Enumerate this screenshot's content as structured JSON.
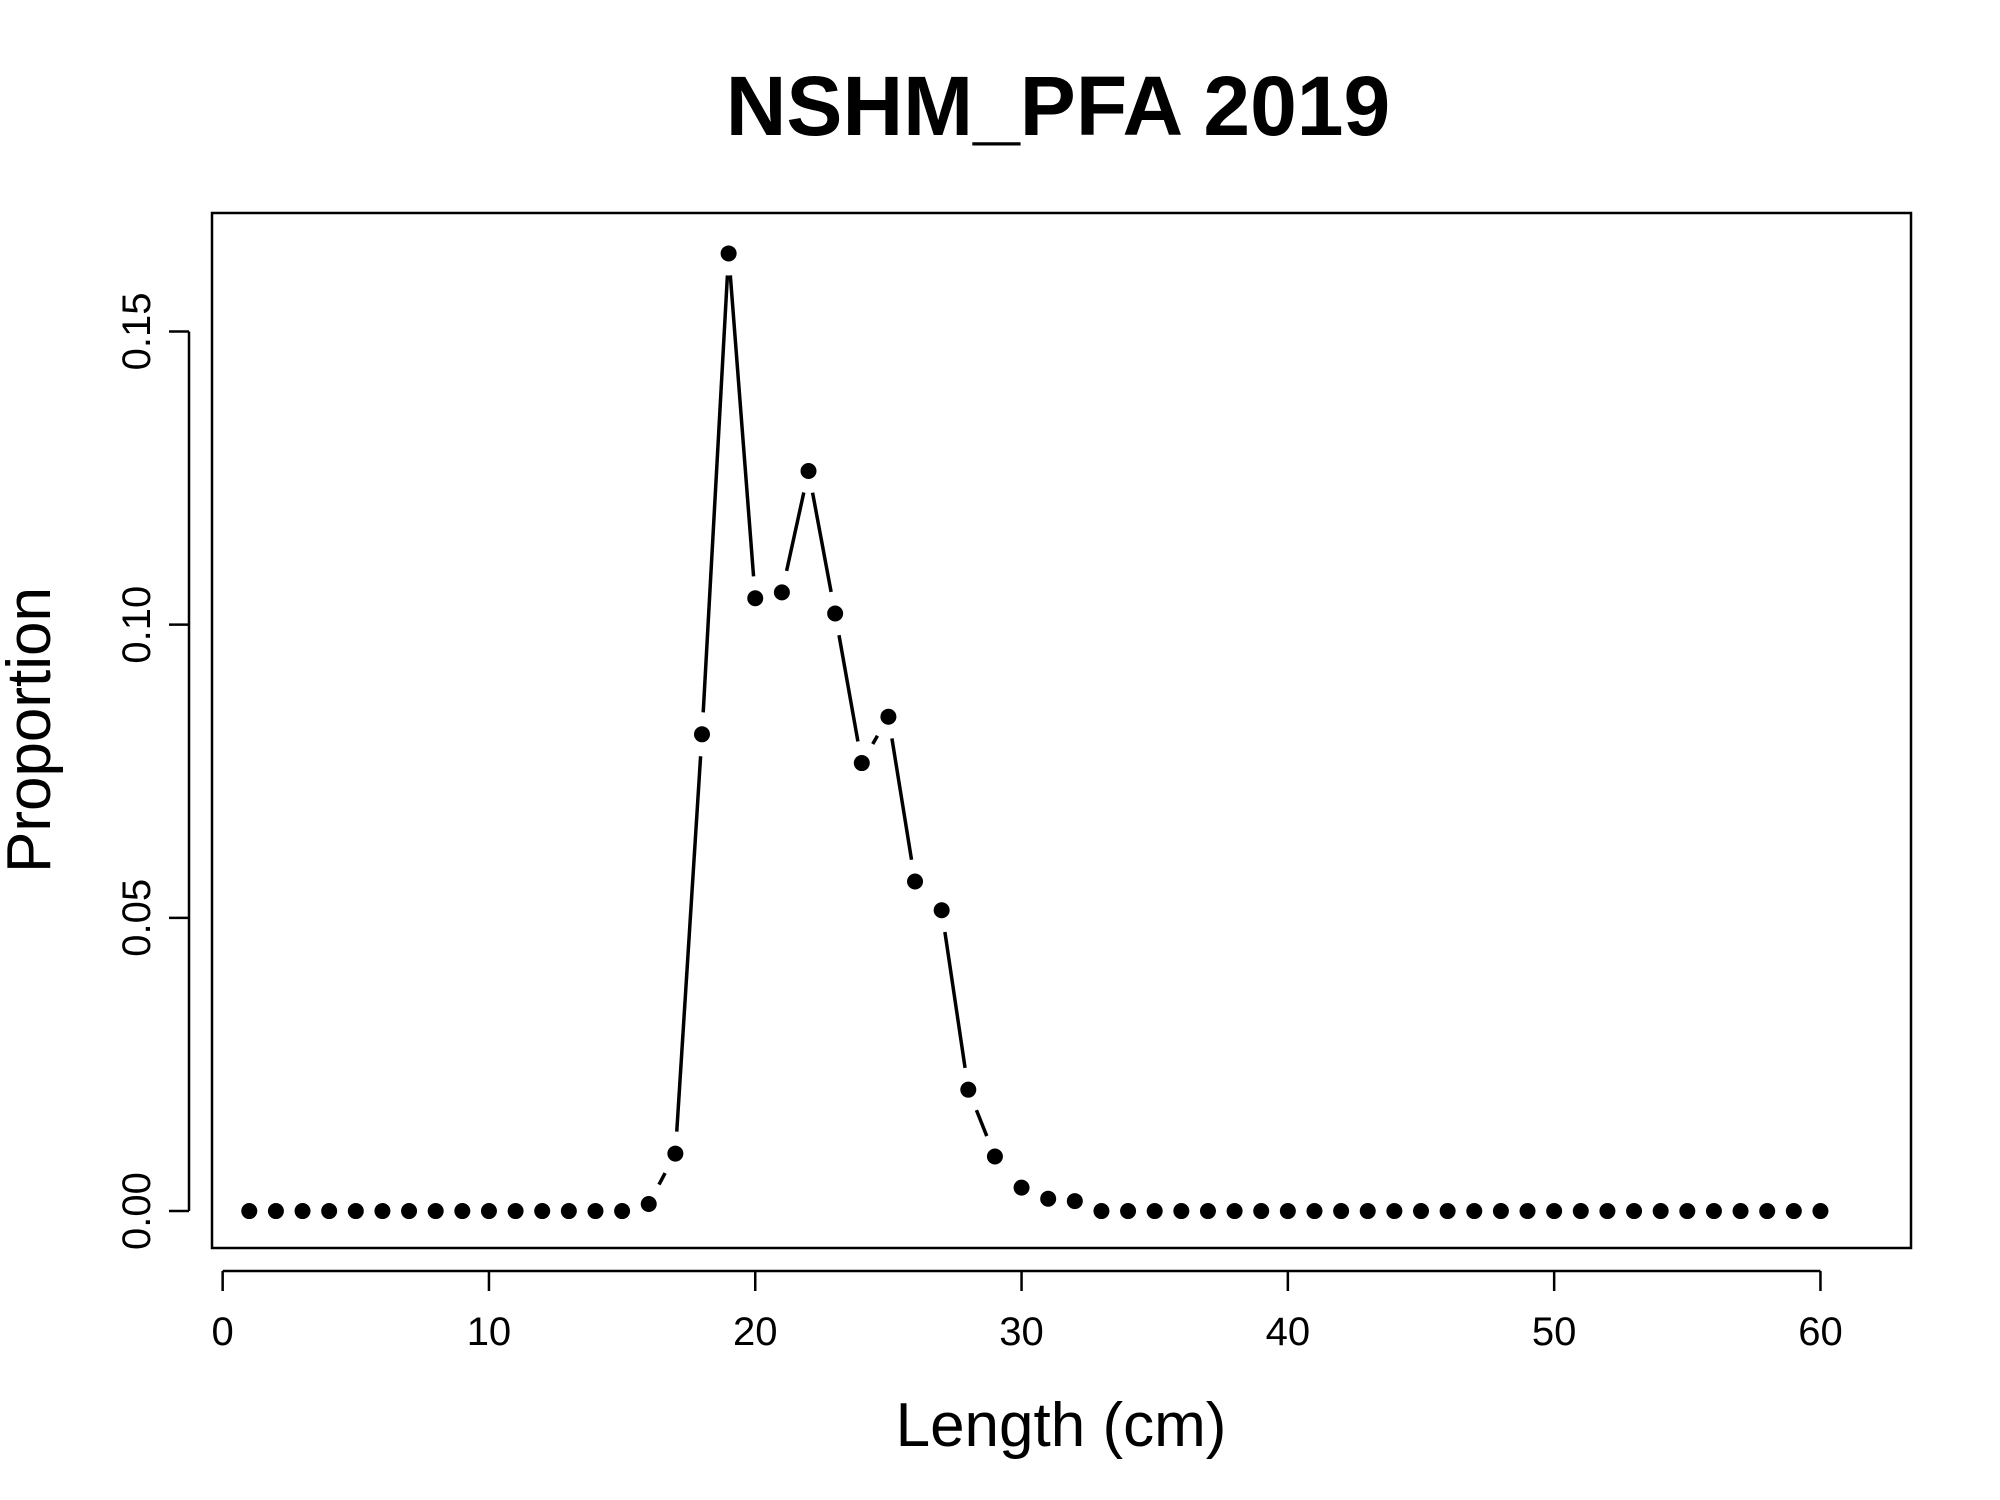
{
  "chart_data": {
    "type": "line",
    "title": "NSHM_PFA 2019",
    "xlabel": "Length (cm)",
    "ylabel": "Proportion",
    "xlim": [
      -0.4,
      63.4
    ],
    "ylim": [
      -0.0063,
      0.1702
    ],
    "x_ticks": [
      0,
      10,
      20,
      30,
      40,
      50,
      60
    ],
    "x_tick_labels": [
      "0",
      "10",
      "20",
      "30",
      "40",
      "50",
      "60"
    ],
    "y_ticks": [
      0.0,
      0.05,
      0.1,
      0.15
    ],
    "y_tick_labels": [
      "0.00",
      "0.05",
      "0.10",
      "0.15"
    ],
    "grid": false,
    "line_style": "points connected by broken line segments",
    "colors": {
      "series": "#000000",
      "axes": "#000000",
      "background": "#ffffff"
    },
    "series": [
      {
        "x": [
          1,
          2,
          3,
          4,
          5,
          6,
          7,
          8,
          9,
          10,
          11,
          12,
          13,
          14,
          15,
          16,
          17,
          18,
          19,
          20,
          21,
          22,
          23,
          24,
          25,
          26,
          27,
          28,
          29,
          30,
          31,
          32,
          33,
          34,
          35,
          36,
          37,
          38,
          39,
          40,
          41,
          42,
          43,
          44,
          45,
          46,
          47,
          48,
          49,
          50,
          51,
          52,
          53,
          54,
          55,
          56,
          57,
          58,
          59,
          60
        ],
        "values": [
          0,
          0,
          0,
          0,
          0,
          0,
          0,
          0,
          0,
          0,
          0,
          0,
          0,
          0,
          0,
          0.0012,
          0.0098,
          0.0813,
          0.1633,
          0.1045,
          0.1055,
          0.1262,
          0.1019,
          0.0764,
          0.0843,
          0.0562,
          0.0513,
          0.0207,
          0.0093,
          0.004,
          0.0021,
          0.0017,
          0,
          0,
          0,
          0,
          0,
          0,
          0,
          0,
          0,
          0,
          0,
          0,
          0,
          0,
          0,
          0,
          0,
          0,
          0,
          0,
          0,
          0,
          0,
          0,
          0,
          0,
          0,
          0
        ]
      }
    ]
  }
}
